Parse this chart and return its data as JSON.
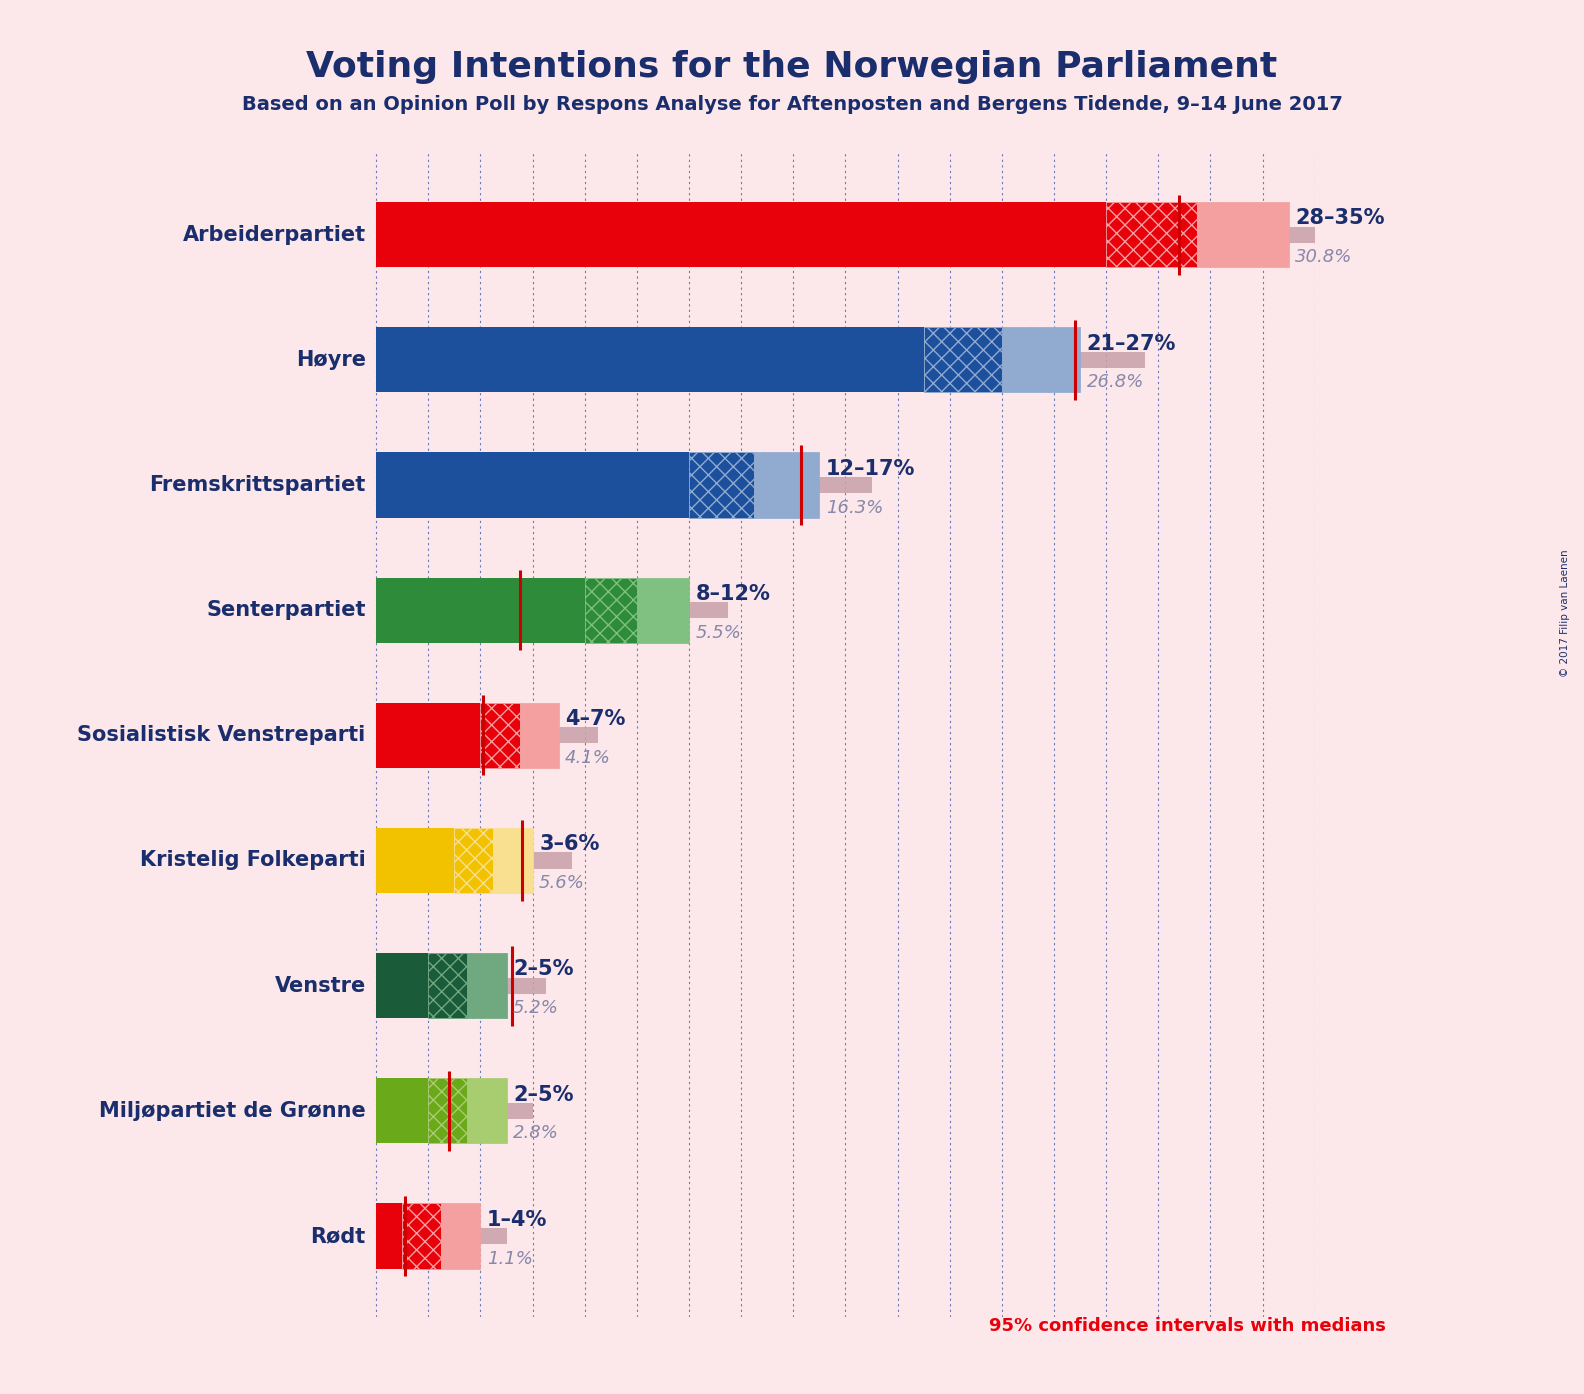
{
  "title": "Voting Intentions for the Norwegian Parliament",
  "subtitle": "Based on an Opinion Poll by Respons Analyse for Aftenposten and Bergens Tidende, 9–14 June 2017",
  "footnote": "95% confidence intervals with medians",
  "copyright": "© 2017 Filip van Laenen",
  "background_color": "#fce8ea",
  "parties": [
    {
      "name": "Arbeiderpartiet",
      "ci_low": 28,
      "ci_high": 35,
      "median": 30.8,
      "ci95_low": 24.5,
      "ci95_high": 37.0,
      "color": "#e8000b",
      "hatch_color": "#f5a0a0"
    },
    {
      "name": "Høyre",
      "ci_low": 21,
      "ci_high": 27,
      "median": 26.8,
      "ci95_low": 18.0,
      "ci95_high": 29.5,
      "color": "#1c4f9c",
      "hatch_color": "#90aad0"
    },
    {
      "name": "Fremskrittspartiet",
      "ci_low": 12,
      "ci_high": 17,
      "median": 16.3,
      "ci95_low": 9.5,
      "ci95_high": 19.0,
      "color": "#1c4f9c",
      "hatch_color": "#90aad0"
    },
    {
      "name": "Senterpartiet",
      "ci_low": 8,
      "ci_high": 12,
      "median": 5.5,
      "ci95_low": 5.5,
      "ci95_high": 13.5,
      "color": "#2e8b3a",
      "hatch_color": "#80c080"
    },
    {
      "name": "Sosialistisk Venstreparti",
      "ci_low": 4,
      "ci_high": 7,
      "median": 4.1,
      "ci95_low": 2.5,
      "ci95_high": 8.5,
      "color": "#e8000b",
      "hatch_color": "#f5a0a0"
    },
    {
      "name": "Kristelig Folkeparti",
      "ci_low": 3,
      "ci_high": 6,
      "median": 5.6,
      "ci95_low": 1.5,
      "ci95_high": 7.5,
      "color": "#f2c200",
      "hatch_color": "#f8e090"
    },
    {
      "name": "Venstre",
      "ci_low": 2,
      "ci_high": 5,
      "median": 5.2,
      "ci95_low": 0.5,
      "ci95_high": 6.5,
      "color": "#1a5b3a",
      "hatch_color": "#70a880"
    },
    {
      "name": "Miljøpartiet de Grønne",
      "ci_low": 2,
      "ci_high": 5,
      "median": 2.8,
      "ci95_low": 0.5,
      "ci95_high": 6.0,
      "color": "#6aaa1a",
      "hatch_color": "#a8cc70"
    },
    {
      "name": "Rødt",
      "ci_low": 1,
      "ci_high": 4,
      "median": 1.1,
      "ci95_low": 0.2,
      "ci95_high": 5.0,
      "color": "#e8000b",
      "hatch_color": "#f5a0a0"
    }
  ],
  "ci_labels": [
    "28–35%",
    "21–27%",
    "12–17%",
    "8–12%",
    "4–7%",
    "3–6%",
    "2–5%",
    "2–5%",
    "1–4%"
  ],
  "median_labels": [
    "30.8%",
    "26.8%",
    "16.3%",
    "5.5%",
    "4.1%",
    "5.6%",
    "5.2%",
    "2.8%",
    "1.1%"
  ],
  "title_color": "#1a2e6e",
  "footnote_color": "#e8000b",
  "grid_color": "#3355aa",
  "median_line_color": "#cc0000",
  "ci95_bar_color": "#c8a0a8",
  "xmax": 36
}
